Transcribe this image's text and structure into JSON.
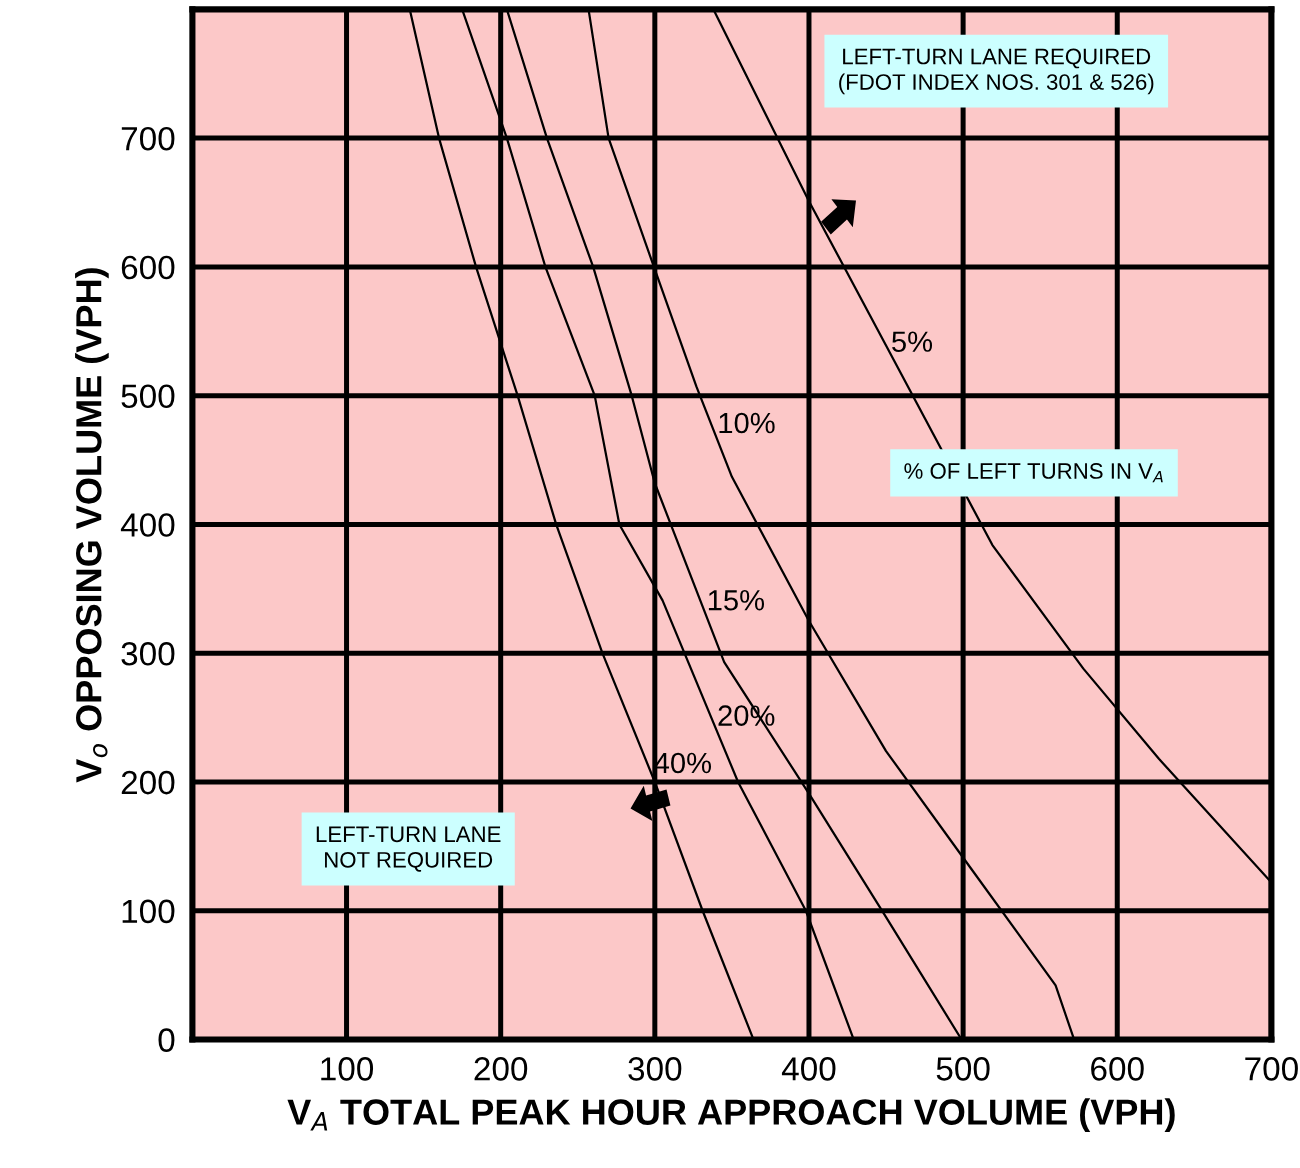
{
  "chart_data": {
    "type": "line",
    "xlabel": "V$_{A}$ TOTAL PEAK HOUR APPROACH VOLUME (VPH)",
    "ylabel": "V$_{o}$ OPPOSING VOLUME (VPH)",
    "series": [
      {
        "name": "40%",
        "color": "#000000",
        "x": [
          141,
          160,
          184,
          211,
          236,
          266,
          300,
          331,
          364
        ],
        "values": [
          800,
          700,
          600,
          500,
          400,
          300,
          200,
          100,
          0
        ]
      },
      {
        "name": "20%",
        "color": "#000000",
        "x": [
          175,
          204,
          229,
          261,
          277,
          305,
          354,
          398,
          429
        ],
        "values": [
          800,
          700,
          600,
          500,
          400,
          341,
          200,
          100,
          0
        ]
      },
      {
        "name": "15%",
        "color": "#000000",
        "x": [
          204,
          230,
          260,
          285,
          300,
          345,
          400,
          450,
          499
        ],
        "values": [
          800,
          700,
          600,
          500,
          432,
          293,
          191,
          95,
          0
        ]
      },
      {
        "name": "10%",
        "color": "#000000",
        "x": [
          257,
          270,
          300,
          327,
          350,
          400,
          450,
          505,
          560,
          572
        ],
        "values": [
          800,
          700,
          598,
          507,
          437,
          325,
          224,
          133,
          42,
          0
        ]
      },
      {
        "name": "5%",
        "color": "#000000",
        "x": [
          338,
          400,
          450,
          519,
          578,
          627,
          700
        ],
        "values": [
          800,
          651,
          539,
          384,
          288,
          218,
          122
        ]
      }
    ],
    "annotations": [
      "LEFT-TURN LANE REQUIRED\n(FDOT INDEX NOS. 301 & 526)",
      "% OF LEFT TURNS IN V$_{A}$",
      "LEFT-TURN LANE\nNOT REQUIRED"
    ],
    "xlim": [
      0,
      700
    ],
    "ylim": [
      0,
      800
    ],
    "xticks": [
      100,
      200,
      300,
      400,
      500,
      600,
      700
    ],
    "yticks": [
      0,
      100,
      200,
      300,
      400,
      500,
      600,
      700
    ],
    "grid": true,
    "legend": false,
    "marker": "none",
    "line_style": "solid"
  }
}
